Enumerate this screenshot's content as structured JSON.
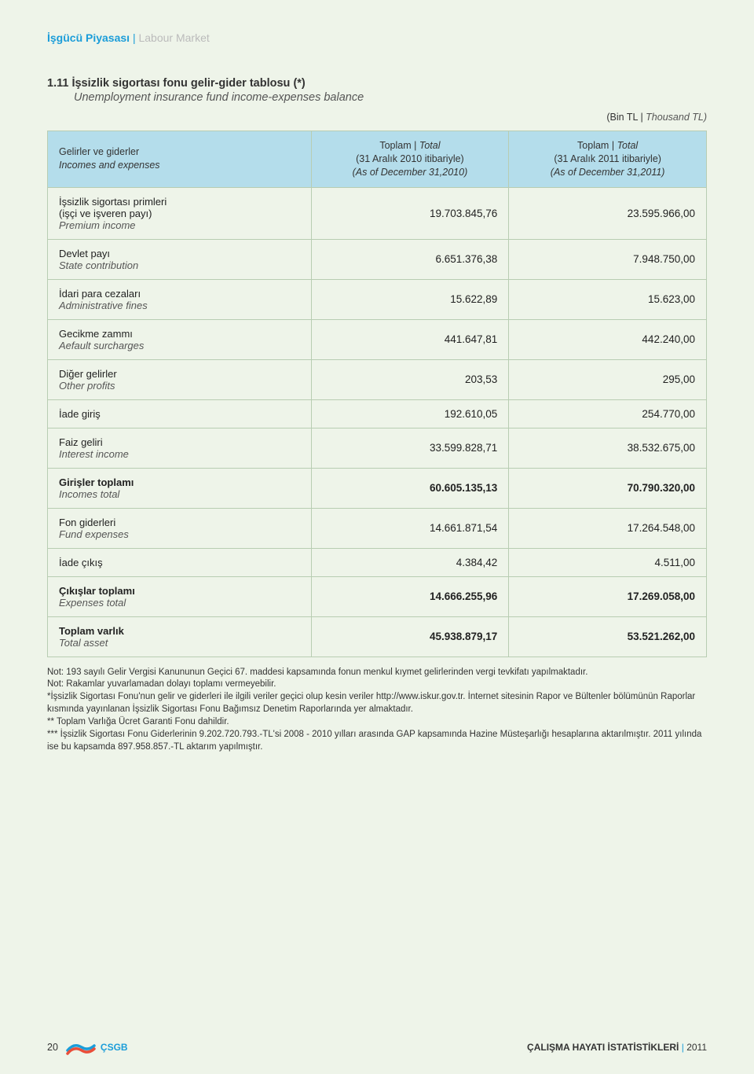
{
  "header": {
    "tr": "İşgücü Piyasası",
    "en": "Labour Market"
  },
  "title": {
    "tr": "1.11 İşsizlik sigortası fonu gelir-gider tablosu (*)",
    "en": "Unemployment insurance fund income-expenses balance"
  },
  "unit": {
    "tr": "(Bin TL",
    "en": "Thousand TL)"
  },
  "columns": {
    "c1_tr": "Gelirler ve giderler",
    "c1_en": "Incomes and expenses",
    "c2_tr": "Toplam",
    "c2_en": "Total",
    "c2_sub_tr": "(31 Aralık 2010 itibariyle)",
    "c2_sub_en": "(As of December 31,2010)",
    "c3_tr": "Toplam",
    "c3_en": "Total",
    "c3_sub_tr": "(31 Aralık 2011 itibariyle)",
    "c3_sub_en": "(As of December 31,2011)"
  },
  "rows": [
    {
      "tr": "İşsizlik sigortası primleri\n(işçi ve işveren payı)",
      "en": "Premium income",
      "v1": "19.703.845,76",
      "v2": "23.595.966,00"
    },
    {
      "tr": "Devlet payı",
      "en": "State contribution",
      "v1": "6.651.376,38",
      "v2": "7.948.750,00"
    },
    {
      "tr": "İdari para cezaları",
      "en": "Administrative fines",
      "v1": "15.622,89",
      "v2": "15.623,00"
    },
    {
      "tr": "Gecikme zammı",
      "en": "Aefault surcharges",
      "v1": "441.647,81",
      "v2": "442.240,00"
    },
    {
      "tr": "Diğer gelirler",
      "en": "Other profits",
      "v1": "203,53",
      "v2": "295,00"
    },
    {
      "tr": "İade giriş",
      "en": "",
      "v1": "192.610,05",
      "v2": "254.770,00"
    },
    {
      "tr": "Faiz geliri",
      "en": "Interest income",
      "v1": "33.599.828,71",
      "v2": "38.532.675,00"
    },
    {
      "tr": "Girişler toplamı",
      "en": "Incomes total",
      "v1": "60.605.135,13",
      "v2": "70.790.320,00",
      "bold": true
    },
    {
      "tr": "Fon giderleri",
      "en": "Fund expenses",
      "v1": "14.661.871,54",
      "v2": "17.264.548,00"
    },
    {
      "tr": "İade çıkış",
      "en": "",
      "v1": "4.384,42",
      "v2": "4.511,00"
    },
    {
      "tr": "Çıkışlar toplamı",
      "en": "Expenses total",
      "v1": "14.666.255,96",
      "v2": "17.269.058,00",
      "bold": true
    },
    {
      "tr": "Toplam varlık",
      "en": "Total asset",
      "v1": "45.938.879,17",
      "v2": "53.521.262,00",
      "bold": true
    }
  ],
  "notes": [
    "Not: 193 sayılı Gelir Vergisi Kanununun Geçici 67. maddesi kapsamında fonun menkul kıymet gelirlerinden vergi tevkifatı yapılmaktadır.",
    "Not: Rakamlar yuvarlamadan dolayı toplamı vermeyebilir.",
    "*İşsizlik Sigortası Fonu'nun gelir ve giderleri ile ilgili veriler geçici olup kesin veriler http://www.iskur.gov.tr. İnternet sitesinin Rapor ve Bültenler bölümünün Raporlar kısmında yayınlanan İşsizlik Sigortası Fonu Bağımsız Denetim Raporlarında yer almaktadır.",
    "** Toplam Varlığa Ücret Garanti Fonu dahildir.",
    "*** İşsizlik Sigortası Fonu Giderlerinin 9.202.720.793.-TL'si 2008 - 2010 yılları arasında GAP kapsamında Hazine Müsteşarlığı hesaplarına aktarılmıştır. 2011 yılında ise bu kapsamda 897.958.857.-TL aktarım yapılmıştır."
  ],
  "footer": {
    "page": "20",
    "logo": "ÇSGB",
    "right_bold": "ÇALIŞMA HAYATI İSTATİSTİKLERİ",
    "right_year": "2011"
  },
  "style": {
    "page_bg": "#eef4e9",
    "header_blue": "#1b9dd9",
    "thead_bg": "#b4ddeb",
    "border_color": "#b8cdb2",
    "logo_colors": {
      "wave1": "#1b9dd9",
      "wave2": "#e94e3a"
    }
  }
}
